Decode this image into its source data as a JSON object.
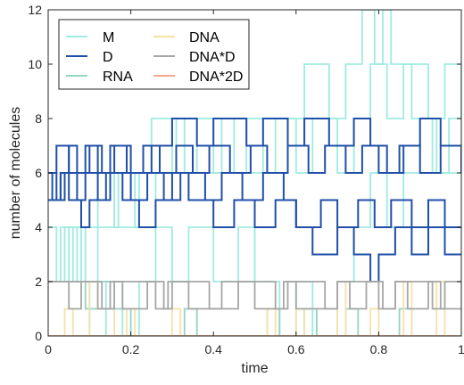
{
  "chart_data": {
    "type": "line",
    "line_shape": "step",
    "xlabel": "time",
    "ylabel": "number of molecules",
    "xlim": [
      0,
      1
    ],
    "ylim": [
      0,
      12
    ],
    "xticks": [
      0,
      0.2,
      0.4,
      0.6,
      0.8,
      1
    ],
    "xtick_labels": [
      "0",
      "0.2",
      "0.4",
      "0.6",
      "0.8",
      "1"
    ],
    "yticks": [
      0,
      2,
      4,
      6,
      8,
      10,
      12
    ],
    "ytick_labels": [
      "0",
      "2",
      "4",
      "6",
      "8",
      "10",
      "12"
    ],
    "grid": false,
    "box": true,
    "legend_position": "top-left",
    "legend_columns": 2,
    "series": [
      {
        "name": "M",
        "color": "#9EEBE0",
        "runs": [
          [
            [
              0,
              2
            ],
            [
              0.03,
              4
            ],
            [
              0.06,
              2
            ],
            [
              0.08,
              4
            ],
            [
              0.12,
              6
            ],
            [
              0.16,
              4
            ],
            [
              0.22,
              6
            ],
            [
              0.25,
              8
            ],
            [
              0.3,
              6
            ],
            [
              0.33,
              8
            ],
            [
              0.4,
              6
            ],
            [
              0.45,
              8
            ],
            [
              0.52,
              6
            ],
            [
              0.58,
              8
            ],
            [
              0.62,
              10
            ],
            [
              0.68,
              8
            ],
            [
              0.72,
              10
            ],
            [
              0.76,
              12
            ],
            [
              0.79,
              10
            ],
            [
              0.82,
              8
            ],
            [
              0.86,
              10
            ],
            [
              0.92,
              8
            ],
            [
              0.96,
              10
            ],
            [
              1,
              8
            ]
          ],
          [
            [
              0,
              4
            ],
            [
              0.02,
              2
            ],
            [
              0.05,
              4
            ],
            [
              0.09,
              2
            ],
            [
              0.12,
              4
            ],
            [
              0.17,
              6
            ],
            [
              0.21,
              4
            ],
            [
              0.26,
              6
            ],
            [
              0.31,
              8
            ],
            [
              0.36,
              6
            ],
            [
              0.42,
              8
            ],
            [
              0.48,
              6
            ],
            [
              0.55,
              8
            ],
            [
              0.6,
              6
            ],
            [
              0.64,
              8
            ],
            [
              0.7,
              6
            ],
            [
              0.74,
              8
            ],
            [
              0.78,
              10
            ],
            [
              0.81,
              12
            ],
            [
              0.83,
              10
            ],
            [
              0.88,
              8
            ],
            [
              0.93,
              6
            ],
            [
              0.97,
              8
            ],
            [
              1,
              8
            ]
          ],
          [
            [
              0,
              2
            ],
            [
              0.04,
              4
            ],
            [
              0.07,
              2
            ],
            [
              0.1,
              0
            ],
            [
              0.14,
              2
            ],
            [
              0.18,
              0
            ],
            [
              0.22,
              2
            ],
            [
              0.26,
              4
            ],
            [
              0.3,
              2
            ],
            [
              0.34,
              4
            ],
            [
              0.4,
              2
            ],
            [
              0.46,
              4
            ],
            [
              0.5,
              2
            ],
            [
              0.56,
              0
            ],
            [
              0.6,
              2
            ],
            [
              0.64,
              0
            ],
            [
              0.7,
              2
            ],
            [
              0.74,
              4
            ],
            [
              0.78,
              6
            ],
            [
              0.82,
              4
            ],
            [
              0.86,
              6
            ],
            [
              0.9,
              8
            ],
            [
              0.94,
              6
            ],
            [
              1,
              6
            ]
          ]
        ]
      },
      {
        "name": "D",
        "color": "#1F4FA8",
        "runs": [
          [
            [
              0,
              6
            ],
            [
              0.01,
              5
            ],
            [
              0.03,
              6
            ],
            [
              0.05,
              7
            ],
            [
              0.07,
              6
            ],
            [
              0.1,
              7
            ],
            [
              0.13,
              6
            ],
            [
              0.16,
              7
            ],
            [
              0.2,
              6
            ],
            [
              0.25,
              7
            ],
            [
              0.3,
              8
            ],
            [
              0.36,
              7
            ],
            [
              0.4,
              8
            ],
            [
              0.48,
              7
            ],
            [
              0.52,
              8
            ],
            [
              0.58,
              7
            ],
            [
              0.62,
              8
            ],
            [
              0.68,
              7
            ],
            [
              0.74,
              8
            ],
            [
              0.78,
              7
            ],
            [
              0.82,
              6
            ],
            [
              0.86,
              7
            ],
            [
              0.9,
              8
            ],
            [
              0.95,
              7
            ],
            [
              1,
              7
            ]
          ],
          [
            [
              0,
              6
            ],
            [
              0.02,
              5
            ],
            [
              0.04,
              6
            ],
            [
              0.07,
              5
            ],
            [
              0.09,
              6
            ],
            [
              0.12,
              5
            ],
            [
              0.15,
              6
            ],
            [
              0.2,
              5
            ],
            [
              0.24,
              6
            ],
            [
              0.28,
              5
            ],
            [
              0.32,
              6
            ],
            [
              0.38,
              5
            ],
            [
              0.42,
              6
            ],
            [
              0.47,
              5
            ],
            [
              0.52,
              6
            ],
            [
              0.57,
              5
            ],
            [
              0.6,
              4
            ],
            [
              0.66,
              5
            ],
            [
              0.7,
              4
            ],
            [
              0.75,
              5
            ],
            [
              0.79,
              4
            ],
            [
              0.83,
              5
            ],
            [
              0.88,
              4
            ],
            [
              0.92,
              5
            ],
            [
              0.96,
              4
            ],
            [
              1,
              4
            ]
          ],
          [
            [
              0,
              5
            ],
            [
              0.03,
              6
            ],
            [
              0.05,
              5
            ],
            [
              0.08,
              4
            ],
            [
              0.1,
              5
            ],
            [
              0.14,
              6
            ],
            [
              0.18,
              5
            ],
            [
              0.22,
              4
            ],
            [
              0.26,
              5
            ],
            [
              0.3,
              6
            ],
            [
              0.34,
              5
            ],
            [
              0.4,
              4
            ],
            [
              0.45,
              5
            ],
            [
              0.5,
              4
            ],
            [
              0.55,
              5
            ],
            [
              0.6,
              4
            ],
            [
              0.64,
              3
            ],
            [
              0.7,
              4
            ],
            [
              0.74,
              3
            ],
            [
              0.78,
              2
            ],
            [
              0.8,
              3
            ],
            [
              0.84,
              4
            ],
            [
              0.88,
              3
            ],
            [
              0.92,
              4
            ],
            [
              0.96,
              3
            ],
            [
              1,
              3
            ]
          ],
          [
            [
              0,
              6
            ],
            [
              0.02,
              7
            ],
            [
              0.05,
              6
            ],
            [
              0.09,
              7
            ],
            [
              0.12,
              6
            ],
            [
              0.15,
              7
            ],
            [
              0.19,
              6
            ],
            [
              0.23,
              7
            ],
            [
              0.27,
              6
            ],
            [
              0.31,
              7
            ],
            [
              0.35,
              6
            ],
            [
              0.39,
              7
            ],
            [
              0.44,
              6
            ],
            [
              0.49,
              7
            ],
            [
              0.53,
              6
            ],
            [
              0.58,
              7
            ],
            [
              0.63,
              6
            ],
            [
              0.67,
              7
            ],
            [
              0.72,
              6
            ],
            [
              0.76,
              7
            ],
            [
              0.8,
              6
            ],
            [
              0.85,
              7
            ],
            [
              0.9,
              6
            ],
            [
              0.95,
              7
            ],
            [
              1,
              6
            ]
          ]
        ]
      },
      {
        "name": "RNA",
        "color": "#93D4C2",
        "runs": [
          [
            [
              0,
              2
            ],
            [
              0.09,
              1
            ],
            [
              0.12,
              2
            ],
            [
              0.16,
              1
            ],
            [
              0.2,
              0
            ],
            [
              0.3,
              0
            ],
            [
              0.33,
              1
            ],
            [
              0.36,
              0
            ],
            [
              0.5,
              0
            ],
            [
              0.53,
              1
            ],
            [
              0.56,
              0
            ],
            [
              0.62,
              1
            ],
            [
              0.65,
              0
            ],
            [
              0.72,
              1
            ],
            [
              0.75,
              0
            ],
            [
              0.85,
              1
            ],
            [
              0.88,
              0
            ],
            [
              1,
              0
            ]
          ]
        ]
      },
      {
        "name": "DNA",
        "color": "#F6E1A8",
        "runs": [
          [
            [
              0,
              0
            ],
            [
              0.04,
              1
            ],
            [
              0.06,
              0
            ],
            [
              0.1,
              2
            ],
            [
              0.12,
              1
            ],
            [
              0.16,
              0
            ],
            [
              0.19,
              1
            ],
            [
              0.21,
              0
            ],
            [
              0.3,
              1
            ],
            [
              0.32,
              0
            ],
            [
              0.5,
              0
            ],
            [
              0.53,
              1
            ],
            [
              0.55,
              0
            ],
            [
              0.6,
              1
            ],
            [
              0.62,
              0
            ],
            [
              0.7,
              2
            ],
            [
              0.72,
              0
            ],
            [
              0.78,
              1
            ],
            [
              0.8,
              0
            ],
            [
              0.86,
              2
            ],
            [
              0.88,
              0
            ],
            [
              0.94,
              2
            ],
            [
              0.96,
              0
            ],
            [
              1,
              0
            ]
          ]
        ]
      },
      {
        "name": "DNA*D",
        "color": "#A6A6A6",
        "runs": [
          [
            [
              0,
              2
            ],
            [
              0.05,
              1
            ],
            [
              0.08,
              2
            ],
            [
              0.12,
              1
            ],
            [
              0.15,
              2
            ],
            [
              0.18,
              1
            ],
            [
              0.24,
              2
            ],
            [
              0.28,
              1
            ],
            [
              0.3,
              2
            ],
            [
              0.34,
              1
            ],
            [
              0.42,
              1
            ],
            [
              0.46,
              2
            ],
            [
              0.5,
              1
            ],
            [
              0.54,
              1
            ],
            [
              0.57,
              2
            ],
            [
              0.6,
              1
            ],
            [
              0.66,
              1
            ],
            [
              0.7,
              2
            ],
            [
              0.73,
              1
            ],
            [
              0.77,
              2
            ],
            [
              0.8,
              1
            ],
            [
              0.84,
              2
            ],
            [
              0.87,
              1
            ],
            [
              0.92,
              2
            ],
            [
              0.95,
              1
            ],
            [
              1,
              1
            ]
          ],
          [
            [
              0,
              2
            ],
            [
              0.1,
              2
            ],
            [
              0.13,
              1
            ],
            [
              0.16,
              2
            ],
            [
              0.22,
              2
            ],
            [
              0.26,
              1
            ],
            [
              0.29,
              2
            ],
            [
              0.36,
              2
            ],
            [
              0.39,
              1
            ],
            [
              0.42,
              2
            ],
            [
              0.52,
              2
            ],
            [
              0.55,
              1
            ],
            [
              0.58,
              2
            ],
            [
              0.64,
              2
            ],
            [
              0.67,
              1
            ],
            [
              0.7,
              2
            ],
            [
              0.78,
              2
            ],
            [
              0.81,
              1
            ],
            [
              0.84,
              2
            ],
            [
              0.9,
              2
            ],
            [
              0.93,
              1
            ],
            [
              0.96,
              2
            ],
            [
              1,
              2
            ]
          ]
        ]
      },
      {
        "name": "DNA*2D",
        "color": "#F4A98C",
        "runs": [
          [
            [
              0,
              0
            ],
            [
              1,
              0
            ]
          ]
        ]
      }
    ]
  }
}
